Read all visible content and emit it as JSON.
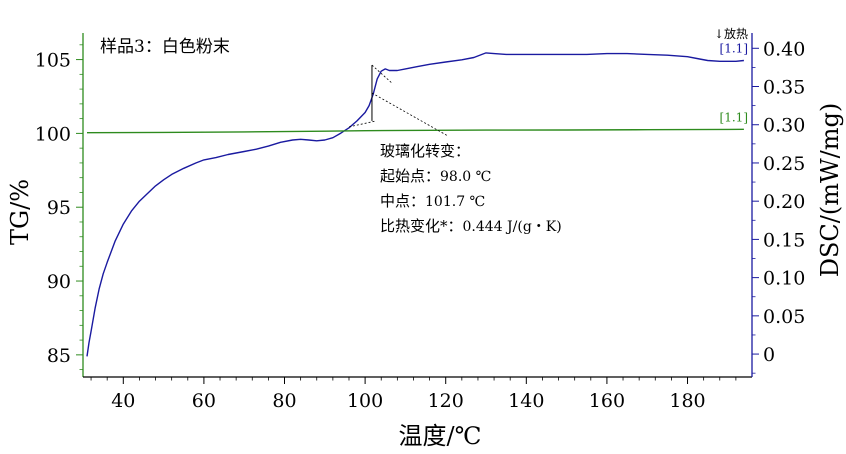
{
  "chart_data": {
    "type": "line",
    "sample_label": "样品3：白色粉末",
    "xlabel": "温度/℃",
    "ylabel_left": "TG/%",
    "ylabel_right": "DSC/(mW/mg)",
    "exo_label": "↓放热",
    "xlim": [
      30,
      196
    ],
    "ylim_left": [
      83.5,
      106.8
    ],
    "ylim_right": [
      -0.03,
      0.42
    ],
    "x_ticks": [
      40,
      60,
      80,
      100,
      120,
      140,
      160,
      180
    ],
    "y_ticks_left": [
      85,
      90,
      95,
      100,
      105
    ],
    "y_ticks_right": [
      "0",
      "0.05",
      "0.10",
      "0.15",
      "0.20",
      "0.25",
      "0.30",
      "0.35",
      "0.40"
    ],
    "y_tick_values_right": [
      0,
      0.05,
      0.1,
      0.15,
      0.2,
      0.25,
      0.3,
      0.35,
      0.4
    ],
    "series": [
      {
        "axis": "right",
        "color": "#1a1aa0",
        "end_label": "[1.1]",
        "x": [
          31,
          31.5,
          32,
          33,
          34,
          35,
          36,
          38,
          40,
          42,
          44,
          46,
          48,
          50,
          52,
          55,
          58,
          60,
          63,
          66,
          70,
          73,
          76,
          79,
          82,
          84,
          86,
          88,
          90,
          92,
          94,
          96,
          98,
          100,
          101,
          102,
          103,
          104,
          105,
          106,
          108,
          110,
          113,
          116,
          120,
          124,
          127,
          129,
          130,
          132,
          135,
          140,
          145,
          150,
          155,
          160,
          165,
          170,
          175,
          180,
          183,
          185,
          188,
          190,
          192,
          194
        ],
        "values": [
          -0.003,
          0.015,
          0.03,
          0.06,
          0.085,
          0.105,
          0.12,
          0.148,
          0.17,
          0.187,
          0.2,
          0.21,
          0.22,
          0.228,
          0.235,
          0.243,
          0.25,
          0.254,
          0.257,
          0.261,
          0.265,
          0.268,
          0.272,
          0.277,
          0.28,
          0.281,
          0.28,
          0.279,
          0.28,
          0.283,
          0.289,
          0.296,
          0.305,
          0.316,
          0.325,
          0.34,
          0.36,
          0.37,
          0.373,
          0.371,
          0.371,
          0.373,
          0.376,
          0.379,
          0.382,
          0.385,
          0.388,
          0.392,
          0.394,
          0.393,
          0.392,
          0.392,
          0.392,
          0.392,
          0.392,
          0.393,
          0.393,
          0.392,
          0.391,
          0.389,
          0.386,
          0.384,
          0.383,
          0.383,
          0.383,
          0.384
        ]
      },
      {
        "axis": "left",
        "color": "#2e8b1e",
        "end_label": "[1.1]",
        "x": [
          31,
          50,
          70,
          90,
          100,
          110,
          130,
          150,
          170,
          190,
          194
        ],
        "values": [
          100.05,
          100.07,
          100.1,
          100.15,
          100.18,
          100.2,
          100.22,
          100.23,
          100.25,
          100.27,
          100.28
        ]
      }
    ],
    "annotation": {
      "title": "玻璃化转变：",
      "lines": [
        {
          "label": "起始点：",
          "value": "98.0 ℃"
        },
        {
          "label": "中点：",
          "value": "101.7 ℃"
        },
        {
          "label": "比热变化*：",
          "value": "0.444 J/(g・K)"
        }
      ],
      "onset_x": 98.0,
      "midpoint_x": 101.7,
      "step_x": 101.7,
      "step_low": 0.305,
      "step_high": 0.378
    }
  }
}
